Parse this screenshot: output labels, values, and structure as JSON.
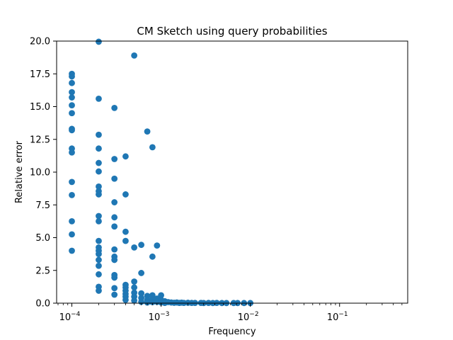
{
  "chart_data": {
    "type": "scatter",
    "title": "CM Sketch using query probabilities",
    "xlabel": "Frequency",
    "ylabel": "Relative error",
    "xscale": "log",
    "xlim": [
      6.75e-05,
      0.58
    ],
    "ylim": [
      0,
      20
    ],
    "grid": false,
    "marker_color": "#1f77b4",
    "x_ticks": [
      {
        "value": 0.0001,
        "base": "10",
        "exp": "−4"
      },
      {
        "value": 0.001,
        "base": "10",
        "exp": "−3"
      },
      {
        "value": 0.01,
        "base": "10",
        "exp": "−2"
      },
      {
        "value": 0.1,
        "base": "10",
        "exp": "−1"
      }
    ],
    "y_ticks": [
      {
        "value": 0,
        "label": "0.0"
      },
      {
        "value": 2.5,
        "label": "2.5"
      },
      {
        "value": 5,
        "label": "5.0"
      },
      {
        "value": 7.5,
        "label": "7.5"
      },
      {
        "value": 10,
        "label": "10.0"
      },
      {
        "value": 12.5,
        "label": "12.5"
      },
      {
        "value": 15,
        "label": "15.0"
      },
      {
        "value": 17.5,
        "label": "17.5"
      },
      {
        "value": 20,
        "label": "20.0"
      }
    ],
    "points": [
      [
        0.0001,
        17.5
      ],
      [
        0.0001,
        17.3
      ],
      [
        0.0001,
        16.8
      ],
      [
        0.0001,
        16.1
      ],
      [
        0.0001,
        15.7
      ],
      [
        0.0001,
        15.1
      ],
      [
        0.0001,
        14.5
      ],
      [
        0.0001,
        13.3
      ],
      [
        0.0001,
        13.2
      ],
      [
        0.0001,
        11.8
      ],
      [
        0.0001,
        11.5
      ],
      [
        0.0001,
        9.25
      ],
      [
        0.0001,
        8.25
      ],
      [
        0.0001,
        6.25
      ],
      [
        0.0001,
        5.25
      ],
      [
        0.0001,
        4.0
      ],
      [
        0.0002,
        19.95
      ],
      [
        0.0002,
        15.6
      ],
      [
        0.0002,
        12.85
      ],
      [
        0.0002,
        11.8
      ],
      [
        0.0002,
        10.7
      ],
      [
        0.0002,
        10.05
      ],
      [
        0.0002,
        8.9
      ],
      [
        0.0002,
        8.55
      ],
      [
        0.0002,
        8.3
      ],
      [
        0.0002,
        6.65
      ],
      [
        0.0002,
        6.25
      ],
      [
        0.0002,
        4.75
      ],
      [
        0.0002,
        4.25
      ],
      [
        0.0002,
        4.0
      ],
      [
        0.0002,
        3.75
      ],
      [
        0.0002,
        3.3
      ],
      [
        0.0002,
        2.85
      ],
      [
        0.0002,
        2.2
      ],
      [
        0.0002,
        1.25
      ],
      [
        0.0002,
        0.95
      ],
      [
        0.0003,
        14.9
      ],
      [
        0.0003,
        11.0
      ],
      [
        0.0003,
        9.5
      ],
      [
        0.0003,
        7.7
      ],
      [
        0.0003,
        6.55
      ],
      [
        0.0003,
        5.85
      ],
      [
        0.0003,
        4.1
      ],
      [
        0.0003,
        3.55
      ],
      [
        0.0003,
        3.3
      ],
      [
        0.0003,
        2.15
      ],
      [
        0.0003,
        1.95
      ],
      [
        0.0003,
        1.15
      ],
      [
        0.0003,
        0.65
      ],
      [
        0.0004,
        11.2
      ],
      [
        0.0004,
        8.3
      ],
      [
        0.0004,
        5.45
      ],
      [
        0.0004,
        4.75
      ],
      [
        0.0004,
        1.4
      ],
      [
        0.0004,
        1.2
      ],
      [
        0.0004,
        0.95
      ],
      [
        0.0004,
        0.7
      ],
      [
        0.0004,
        0.5
      ],
      [
        0.0004,
        0.25
      ],
      [
        0.0005,
        18.9
      ],
      [
        0.0005,
        4.25
      ],
      [
        0.0005,
        1.65
      ],
      [
        0.0005,
        1.2
      ],
      [
        0.0005,
        0.8
      ],
      [
        0.0005,
        0.5
      ],
      [
        0.0005,
        0.2
      ],
      [
        0.0006,
        4.45
      ],
      [
        0.0006,
        2.3
      ],
      [
        0.0006,
        0.75
      ],
      [
        0.0006,
        0.4
      ],
      [
        0.0006,
        0.1
      ],
      [
        0.0007,
        13.1
      ],
      [
        0.0007,
        0.55
      ],
      [
        0.0007,
        0.25
      ],
      [
        0.0007,
        0.05
      ],
      [
        0.0008,
        11.9
      ],
      [
        0.0008,
        3.55
      ],
      [
        0.0008,
        0.6
      ],
      [
        0.0008,
        0.3
      ],
      [
        0.0008,
        0.08
      ],
      [
        0.0009,
        4.4
      ],
      [
        0.0009,
        0.35
      ],
      [
        0.0009,
        0.1
      ],
      [
        0.001,
        0.6
      ],
      [
        0.001,
        0.25
      ],
      [
        0.001,
        0.05
      ],
      [
        0.0011,
        0.15
      ],
      [
        0.0011,
        0.02
      ],
      [
        0.0012,
        0.08
      ],
      [
        0.0013,
        0.05
      ],
      [
        0.0014,
        0.03
      ],
      [
        0.0015,
        0.05
      ],
      [
        0.0016,
        0.02
      ],
      [
        0.0017,
        0.04
      ],
      [
        0.0018,
        0.02
      ],
      [
        0.002,
        0.03
      ],
      [
        0.0022,
        0.02
      ],
      [
        0.0024,
        0.02
      ],
      [
        0.0028,
        0.02
      ],
      [
        0.003,
        0.01
      ],
      [
        0.0034,
        0.02
      ],
      [
        0.0038,
        0.01
      ],
      [
        0.0042,
        0.02
      ],
      [
        0.0048,
        0.01
      ],
      [
        0.0054,
        0.01
      ],
      [
        0.0065,
        0.01
      ],
      [
        0.0072,
        0.01
      ],
      [
        0.0085,
        0.01
      ],
      [
        0.01,
        0.01
      ]
    ]
  }
}
